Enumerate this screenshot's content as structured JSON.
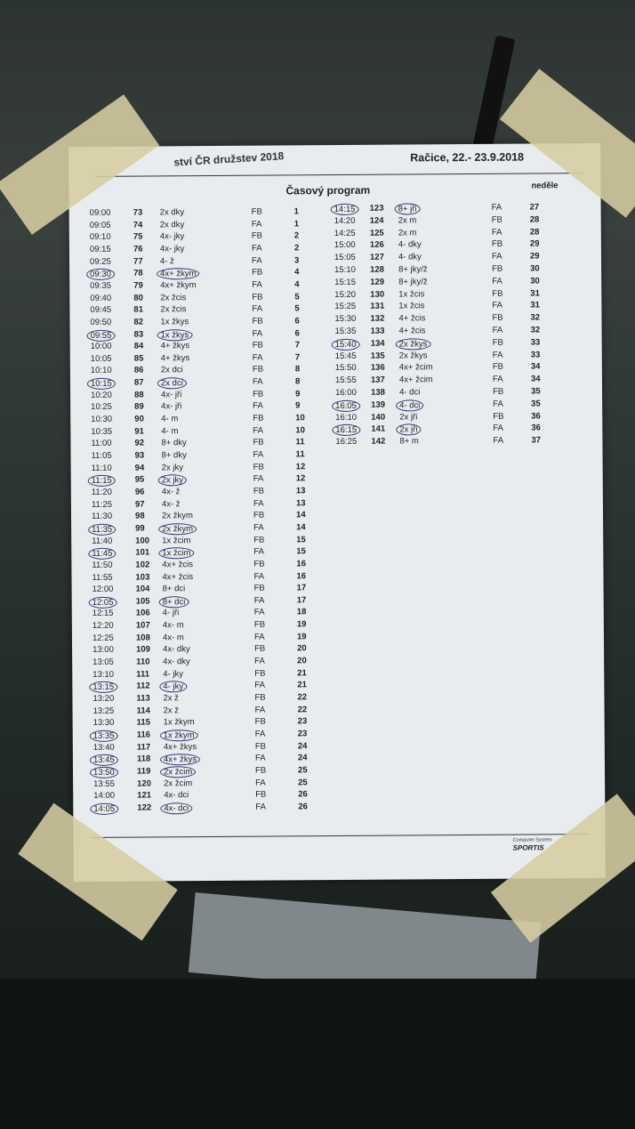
{
  "header": {
    "event_title_partial": "ství ČR družstev 2018",
    "place_date": "Račice, 22.- 23.9.2018",
    "title": "Časový program",
    "day": "neděle"
  },
  "footer": {
    "line1": "Computer System",
    "brand": "SPORTIS"
  },
  "columns": [
    "time",
    "race_number",
    "category",
    "lane",
    "race"
  ],
  "left_rows": [
    [
      "09:00",
      "73",
      "2x dky",
      "FB",
      "1",
      false
    ],
    [
      "09:05",
      "74",
      "2x dky",
      "FA",
      "1",
      false
    ],
    [
      "09:10",
      "75",
      "4x- jky",
      "FB",
      "2",
      false
    ],
    [
      "09:15",
      "76",
      "4x- jky",
      "FA",
      "2",
      false
    ],
    [
      "09:25",
      "77",
      "4- ž",
      "FA",
      "3",
      false
    ],
    [
      "09:30",
      "78",
      "4x+ žkym",
      "FB",
      "4",
      true
    ],
    [
      "09:35",
      "79",
      "4x+ žkym",
      "FA",
      "4",
      false
    ],
    [
      "09:40",
      "80",
      "2x žcis",
      "FB",
      "5",
      false
    ],
    [
      "09:45",
      "81",
      "2x žcis",
      "FA",
      "5",
      false
    ],
    [
      "09:50",
      "82",
      "1x žkys",
      "FB",
      "6",
      false
    ],
    [
      "09:55",
      "83",
      "1x žkys",
      "FA",
      "6",
      true
    ],
    [
      "10:00",
      "84",
      "4+ žkys",
      "FB",
      "7",
      false
    ],
    [
      "10:05",
      "85",
      "4+ žkys",
      "FA",
      "7",
      false
    ],
    [
      "10:10",
      "86",
      "2x dci",
      "FB",
      "8",
      false
    ],
    [
      "10:15",
      "87",
      "2x dci",
      "FA",
      "8",
      true
    ],
    [
      "10:20",
      "88",
      "4x- jři",
      "FB",
      "9",
      false
    ],
    [
      "10:25",
      "89",
      "4x- jři",
      "FA",
      "9",
      false
    ],
    [
      "10:30",
      "90",
      "4- m",
      "FB",
      "10",
      false
    ],
    [
      "10:35",
      "91",
      "4- m",
      "FA",
      "10",
      false
    ],
    [
      "11:00",
      "92",
      "8+ dky",
      "FB",
      "11",
      false
    ],
    [
      "11:05",
      "93",
      "8+ dky",
      "FA",
      "11",
      false
    ],
    [
      "11:10",
      "94",
      "2x jky",
      "FB",
      "12",
      false
    ],
    [
      "11:15",
      "95",
      "2x jky",
      "FA",
      "12",
      true
    ],
    [
      "11:20",
      "96",
      "4x- ž",
      "FB",
      "13",
      false
    ],
    [
      "11:25",
      "97",
      "4x- ž",
      "FA",
      "13",
      false
    ],
    [
      "11:30",
      "98",
      "2x žkym",
      "FB",
      "14",
      false
    ],
    [
      "11:35",
      "99",
      "2x žkym",
      "FA",
      "14",
      true
    ],
    [
      "11:40",
      "100",
      "1x žcim",
      "FB",
      "15",
      false
    ],
    [
      "11:45",
      "101",
      "1x žcim",
      "FA",
      "15",
      true
    ],
    [
      "11:50",
      "102",
      "4x+ žcis",
      "FB",
      "16",
      false
    ],
    [
      "11:55",
      "103",
      "4x+ žcis",
      "FA",
      "16",
      false
    ],
    [
      "12:00",
      "104",
      "8+ dci",
      "FB",
      "17",
      false
    ],
    [
      "12:05",
      "105",
      "8+ dci",
      "FA",
      "17",
      true
    ],
    [
      "12:15",
      "106",
      "4- jři",
      "FA",
      "18",
      false
    ],
    [
      "12:20",
      "107",
      "4x- m",
      "FB",
      "19",
      false
    ],
    [
      "12:25",
      "108",
      "4x- m",
      "FA",
      "19",
      false
    ],
    [
      "13:00",
      "109",
      "4x- dky",
      "FB",
      "20",
      false
    ],
    [
      "13:05",
      "110",
      "4x- dky",
      "FA",
      "20",
      false
    ],
    [
      "13:10",
      "111",
      "4- jky",
      "FB",
      "21",
      false
    ],
    [
      "13:15",
      "112",
      "4- jky",
      "FA",
      "21",
      true
    ],
    [
      "13:20",
      "113",
      "2x ž",
      "FB",
      "22",
      false
    ],
    [
      "13:25",
      "114",
      "2x ž",
      "FA",
      "22",
      false
    ],
    [
      "13:30",
      "115",
      "1x žkym",
      "FB",
      "23",
      false
    ],
    [
      "13:35",
      "116",
      "1x žkym",
      "FA",
      "23",
      true
    ],
    [
      "13:40",
      "117",
      "4x+ žkys",
      "FB",
      "24",
      false
    ],
    [
      "13:45",
      "118",
      "4x+ žkys",
      "FA",
      "24",
      true
    ],
    [
      "13:50",
      "119",
      "2x žcim",
      "FB",
      "25",
      true
    ],
    [
      "13:55",
      "120",
      "2x žcim",
      "FA",
      "25",
      false
    ],
    [
      "14:00",
      "121",
      "4x- dci",
      "FB",
      "26",
      false
    ],
    [
      "14:05",
      "122",
      "4x- dci",
      "FA",
      "26",
      true
    ]
  ],
  "right_rows": [
    [
      "14:15",
      "123",
      "8+ jři",
      "FA",
      "27",
      true
    ],
    [
      "14:20",
      "124",
      "2x m",
      "FB",
      "28",
      false
    ],
    [
      "14:25",
      "125",
      "2x m",
      "FA",
      "28",
      false
    ],
    [
      "15:00",
      "126",
      "4- dky",
      "FB",
      "29",
      false
    ],
    [
      "15:05",
      "127",
      "4- dky",
      "FA",
      "29",
      false
    ],
    [
      "15:10",
      "128",
      "8+ jky/ž",
      "FB",
      "30",
      false
    ],
    [
      "15:15",
      "129",
      "8+ jky/ž",
      "FA",
      "30",
      false
    ],
    [
      "15:20",
      "130",
      "1x žcis",
      "FB",
      "31",
      false
    ],
    [
      "15:25",
      "131",
      "1x žcis",
      "FA",
      "31",
      false
    ],
    [
      "15:30",
      "132",
      "4+ žcis",
      "FB",
      "32",
      false
    ],
    [
      "15:35",
      "133",
      "4+ žcis",
      "FA",
      "32",
      false
    ],
    [
      "15:40",
      "134",
      "2x žkys",
      "FB",
      "33",
      true
    ],
    [
      "15:45",
      "135",
      "2x žkys",
      "FA",
      "33",
      false
    ],
    [
      "15:50",
      "136",
      "4x+ žcim",
      "FB",
      "34",
      false
    ],
    [
      "15:55",
      "137",
      "4x+ žcim",
      "FA",
      "34",
      false
    ],
    [
      "16:00",
      "138",
      "4- dci",
      "FB",
      "35",
      false
    ],
    [
      "16:05",
      "139",
      "4- dci",
      "FA",
      "35",
      true
    ],
    [
      "16:10",
      "140",
      "2x jři",
      "FB",
      "36",
      false
    ],
    [
      "16:15",
      "141",
      "2x jři",
      "FA",
      "36",
      true
    ],
    [
      "16:25",
      "142",
      "8+ m",
      "FA",
      "37",
      false
    ]
  ]
}
